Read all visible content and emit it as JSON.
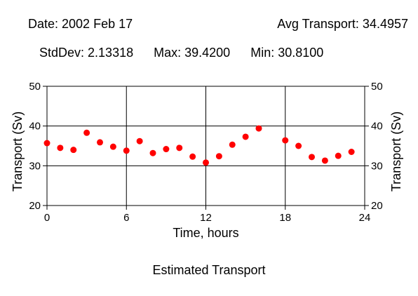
{
  "header": {
    "date": "Date: 2002 Feb 17",
    "avg": "Avg Transport: 34.4957",
    "stddev": "StdDev: 2.13318",
    "max": "Max: 39.4200",
    "min": "Min: 30.8100"
  },
  "caption": "Estimated Transport",
  "chart_data": {
    "type": "scatter",
    "xlabel": "Time, hours",
    "ylabel": "Transport (Sv)",
    "xlim": [
      0,
      24
    ],
    "ylim": [
      20,
      50
    ],
    "x_ticks": [
      0,
      6,
      12,
      18,
      24
    ],
    "y_ticks": [
      20,
      30,
      40,
      50
    ],
    "grid": true,
    "marker_color": "#ff0000",
    "x": [
      0,
      1,
      2,
      3,
      4,
      5,
      6,
      7,
      8,
      9,
      10,
      11,
      12,
      13,
      14,
      15,
      16,
      18,
      19,
      20,
      21,
      22,
      23
    ],
    "y": [
      35.7,
      34.5,
      34.0,
      38.3,
      35.9,
      34.8,
      33.8,
      36.2,
      33.2,
      34.2,
      34.5,
      32.3,
      30.8,
      32.4,
      35.3,
      37.3,
      39.4,
      36.4,
      35.0,
      32.2,
      31.3,
      32.5,
      33.5
    ]
  }
}
